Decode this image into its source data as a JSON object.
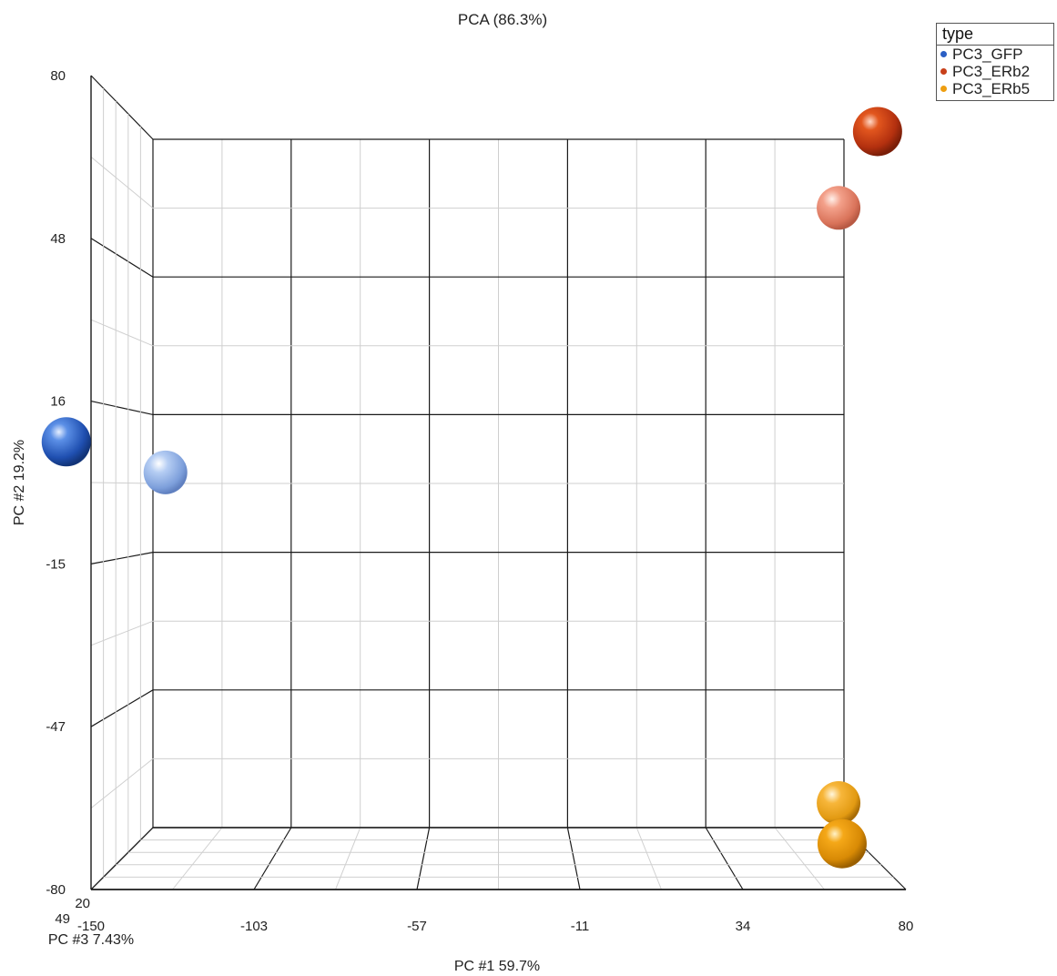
{
  "chart_data": {
    "type": "scatter",
    "title": "PCA (86.3%)",
    "xlabel": "PC #1 59.7%",
    "ylabel": "PC #2 19.2%",
    "zlabel": "PC #3 7.43%",
    "xlim": [
      -150,
      80
    ],
    "ylim": [
      -80,
      80
    ],
    "x_ticks": [
      "-150",
      "-103",
      "-57",
      "-11",
      "34",
      "80"
    ],
    "y_ticks": [
      "80",
      "48",
      "16",
      "-15",
      "-47",
      "-80"
    ],
    "z_ticks_visible": [
      "49",
      "20"
    ],
    "legend": {
      "title": "type",
      "position": "top-right",
      "entries": [
        {
          "name": "PC3_GFP",
          "color": "#2b5fc4"
        },
        {
          "name": "PC3_ERb2",
          "color": "#c8401a"
        },
        {
          "name": "PC3_ERb5",
          "color": "#ee9e10"
        }
      ]
    },
    "series": [
      {
        "name": "PC3_GFP",
        "color": "#2b5fc4",
        "points": [
          {
            "x": -157,
            "y": 8,
            "shade": "dark"
          },
          {
            "x": -129,
            "y": 2,
            "shade": "light"
          }
        ]
      },
      {
        "name": "PC3_ERb2",
        "color": "#c8401a",
        "points": [
          {
            "x": 72,
            "y": 69,
            "shade": "dark"
          },
          {
            "x": 61,
            "y": 54,
            "shade": "light"
          }
        ]
      },
      {
        "name": "PC3_ERb5",
        "color": "#ee9e10",
        "points": [
          {
            "x": 61,
            "y": -63,
            "shade": "light"
          },
          {
            "x": 62,
            "y": -71,
            "shade": "dark"
          }
        ]
      }
    ]
  }
}
